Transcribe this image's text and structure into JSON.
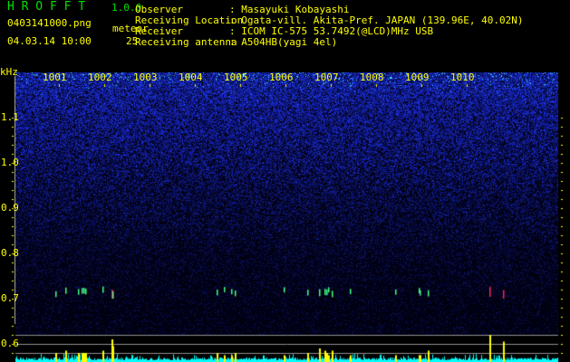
{
  "header": {
    "app_title": "H R O F F T",
    "version": "1.0.0",
    "filename": "0403141000.png",
    "datetime": "04.03.14 10:00",
    "meteor_label": "meteor",
    "meteor_count": "25",
    "info": [
      {
        "label": "Observer",
        "value": ": Masayuki Kobayashi"
      },
      {
        "label": "Receiving Location",
        "value": ": Ogata-vill. Akita-Pref. JAPAN (139.96E, 40.02N)"
      },
      {
        "label": "Receiver",
        "value": ": ICOM IC-575 53.7492(@LCD)MHz USB"
      },
      {
        "label": "Receiving antenna",
        "value": ": A504HB(yagi 4el)"
      }
    ]
  },
  "colors": {
    "text": "#ffff00",
    "title": "#00e000",
    "noise": "#1a2ad0",
    "echo_bar": "#ffff00",
    "baseline_bar": "#00ffff"
  },
  "chart_data": {
    "type": "heatmap",
    "ylabel": "kHz",
    "y_ticks": [
      "1.1",
      "1.0",
      "0.9",
      "0.8",
      "0.7",
      "0.6"
    ],
    "ylim": [
      0.56,
      1.2
    ],
    "x_ticks": [
      "1001",
      "1002",
      "1003",
      "1004",
      "1005",
      "1006",
      "1007",
      "1008",
      "1009",
      "1010"
    ],
    "xlim_minutes": [
      0,
      12
    ],
    "meteor_echo_times_min": [
      0.92,
      1.14,
      1.42,
      1.5,
      1.54,
      1.58,
      1.96,
      2.16,
      2.18,
      4.48,
      4.64,
      4.8,
      4.88,
      5.96,
      6.48,
      6.74,
      6.86,
      6.9,
      6.94,
      7.02,
      7.42,
      8.42,
      8.94,
      8.96,
      9.14,
      10.5,
      10.8
    ],
    "meteor_echo_strength": [
      0.4,
      0.5,
      0.4,
      0.4,
      0.4,
      0.4,
      0.5,
      1.0,
      0.7,
      0.4,
      0.3,
      0.3,
      0.4,
      0.3,
      0.4,
      0.6,
      0.5,
      0.4,
      0.3,
      0.5,
      0.3,
      0.3,
      0.3,
      0.3,
      0.5,
      1.2,
      0.9
    ]
  }
}
